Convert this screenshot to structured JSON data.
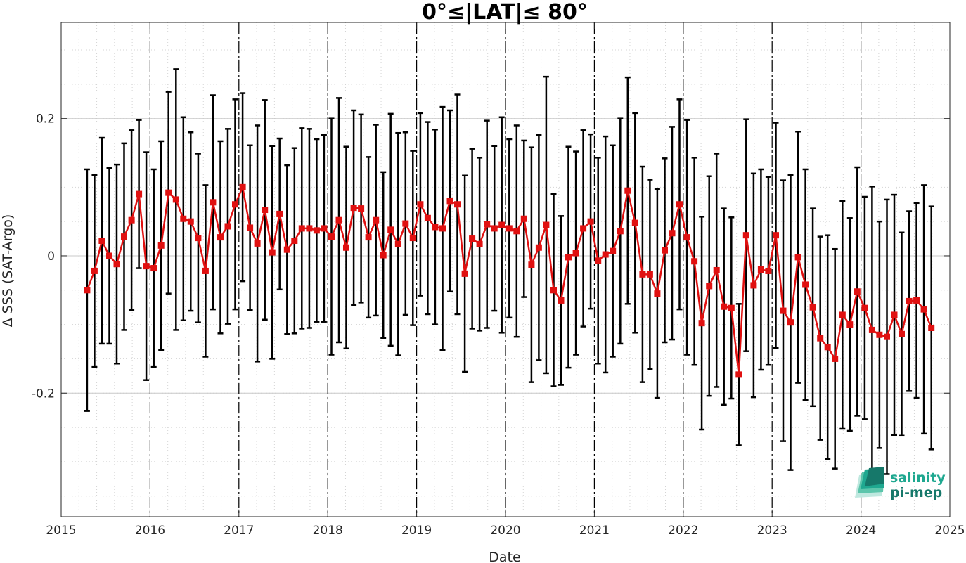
{
  "chart_data": {
    "type": "line",
    "title": "0°≤|LAT|≤ 80°",
    "xlabel": "Date",
    "ylabel": "Δ SSS (SAT-Argo)",
    "xlim": [
      2015,
      2025
    ],
    "ylim": [
      -0.38,
      0.34
    ],
    "x_ticks": [
      2015,
      2016,
      2017,
      2018,
      2019,
      2020,
      2021,
      2022,
      2023,
      2024,
      2025
    ],
    "x_tick_labels": [
      "2015",
      "2016",
      "2017",
      "2018",
      "2019",
      "2020",
      "2021",
      "2022",
      "2023",
      "2024",
      "2025"
    ],
    "y_ticks": [
      -0.2,
      0,
      0.2
    ],
    "y_tick_labels": [
      "-0.2",
      "0",
      "0.2"
    ],
    "grid": true,
    "year_dividers": [
      2016,
      2017,
      2018,
      2019,
      2020,
      2021,
      2022,
      2023,
      2024
    ],
    "colors": {
      "line": "#e01010",
      "marker": "#e01010",
      "errorbar": "#000000",
      "logo_primary": "#1fa890",
      "logo_secondary": "#16786a"
    },
    "series": [
      {
        "x": [
          2015.292,
          2015.375,
          2015.458,
          2015.542,
          2015.625,
          2015.708,
          2015.792,
          2015.875,
          2015.958,
          2016.042,
          2016.125,
          2016.208,
          2016.292,
          2016.375,
          2016.458,
          2016.542,
          2016.625,
          2016.708,
          2016.792,
          2016.875,
          2016.958,
          2017.042,
          2017.125,
          2017.208,
          2017.292,
          2017.375,
          2017.458,
          2017.542,
          2017.625,
          2017.708,
          2017.792,
          2017.875,
          2017.958,
          2018.042,
          2018.125,
          2018.208,
          2018.292,
          2018.375,
          2018.458,
          2018.542,
          2018.625,
          2018.708,
          2018.792,
          2018.875,
          2018.958,
          2019.042,
          2019.125,
          2019.208,
          2019.292,
          2019.375,
          2019.458,
          2019.542,
          2019.625,
          2019.708,
          2019.792,
          2019.875,
          2019.958,
          2020.042,
          2020.125,
          2020.208,
          2020.292,
          2020.375,
          2020.458,
          2020.542,
          2020.625,
          2020.708,
          2020.792,
          2020.875,
          2020.958,
          2021.042,
          2021.125,
          2021.208,
          2021.292,
          2021.375,
          2021.458,
          2021.542,
          2021.625,
          2021.708,
          2021.792,
          2021.875,
          2021.958,
          2022.042,
          2022.125,
          2022.208,
          2022.292,
          2022.375,
          2022.458,
          2022.542,
          2022.625,
          2022.708,
          2022.792,
          2022.875,
          2022.958,
          2023.042,
          2023.125,
          2023.208,
          2023.292,
          2023.375,
          2023.458,
          2023.542,
          2023.625,
          2023.708,
          2023.792,
          2023.875,
          2023.958,
          2024.042,
          2024.125,
          2024.208,
          2024.292,
          2024.375,
          2024.458,
          2024.542,
          2024.625,
          2024.708,
          2024.792
        ],
        "y": [
          -0.05,
          -0.022,
          0.022,
          0.0,
          -0.012,
          0.028,
          0.052,
          0.09,
          -0.015,
          -0.018,
          0.015,
          0.092,
          0.082,
          0.054,
          0.05,
          0.026,
          -0.022,
          0.078,
          0.027,
          0.043,
          0.075,
          0.1,
          0.041,
          0.018,
          0.067,
          0.005,
          0.061,
          0.009,
          0.022,
          0.04,
          0.04,
          0.037,
          0.04,
          0.028,
          0.052,
          0.012,
          0.07,
          0.069,
          0.027,
          0.052,
          0.001,
          0.038,
          0.017,
          0.047,
          0.026,
          0.075,
          0.055,
          0.042,
          0.04,
          0.08,
          0.075,
          -0.026,
          0.025,
          0.017,
          0.046,
          0.04,
          0.045,
          0.04,
          0.036,
          0.054,
          -0.013,
          0.012,
          0.045,
          -0.05,
          -0.065,
          -0.002,
          0.004,
          0.04,
          0.05,
          -0.007,
          0.002,
          0.007,
          0.036,
          0.095,
          0.048,
          -0.027,
          -0.027,
          -0.055,
          0.008,
          0.033,
          0.075,
          0.027,
          -0.008,
          -0.098,
          -0.044,
          -0.021,
          -0.074,
          -0.076,
          -0.173,
          0.03,
          -0.043,
          -0.02,
          -0.022,
          0.03,
          -0.08,
          -0.097,
          -0.002,
          -0.042,
          -0.075,
          -0.12,
          -0.133,
          -0.15,
          -0.086,
          -0.1,
          -0.052,
          -0.076,
          -0.108,
          -0.115,
          -0.118,
          -0.086,
          -0.114,
          -0.066,
          -0.065,
          -0.078,
          -0.105
        ],
        "err": [
          0.176,
          0.14,
          0.15,
          0.128,
          0.145,
          0.136,
          0.131,
          0.108,
          0.166,
          0.144,
          0.152,
          0.147,
          0.19,
          0.148,
          0.13,
          0.123,
          0.125,
          0.156,
          0.14,
          0.142,
          0.153,
          0.137,
          0.12,
          0.172,
          0.16,
          0.155,
          0.11,
          0.123,
          0.135,
          0.146,
          0.145,
          0.133,
          0.136,
          0.172,
          0.178,
          0.147,
          0.142,
          0.137,
          0.117,
          0.139,
          0.121,
          0.169,
          0.162,
          0.133,
          0.127,
          0.133,
          0.14,
          0.142,
          0.177,
          0.132,
          0.16,
          0.143,
          0.131,
          0.126,
          0.151,
          0.12,
          0.157,
          0.13,
          0.154,
          0.114,
          0.171,
          0.164,
          0.216,
          0.14,
          0.123,
          0.161,
          0.148,
          0.143,
          0.127,
          0.15,
          0.172,
          0.154,
          0.164,
          0.165,
          0.16,
          0.157,
          0.138,
          0.152,
          0.134,
          0.155,
          0.153,
          0.171,
          0.151,
          0.155,
          0.16,
          0.17,
          0.143,
          0.132,
          0.103,
          0.169,
          0.163,
          0.146,
          0.137,
          0.164,
          0.19,
          0.215,
          0.183,
          0.168,
          0.144,
          0.148,
          0.163,
          0.16,
          0.166,
          0.155,
          0.181,
          0.162,
          0.209,
          0.165,
          0.2,
          0.175,
          0.148,
          0.131,
          0.142,
          0.181,
          0.177
        ]
      }
    ]
  },
  "logo": {
    "line1": "salinity",
    "line2": "pi-mep"
  }
}
